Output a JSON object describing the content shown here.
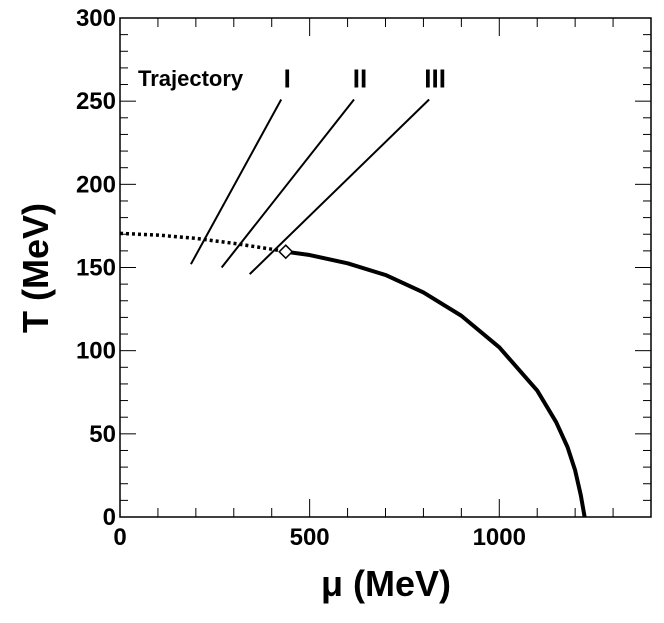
{
  "chart_data": {
    "type": "line",
    "xlabel": "μ (MeV)",
    "ylabel": "T (MeV)",
    "xlim": [
      0,
      1400
    ],
    "ylim": [
      0,
      300
    ],
    "x_tick_labels": [
      "0",
      "500",
      "1000"
    ],
    "y_tick_labels": [
      "0",
      "50",
      "100",
      "150",
      "200",
      "250",
      "300"
    ],
    "annotation_title": "Trajectory",
    "series": [
      {
        "style": "dotted",
        "x": [
          0,
          100,
          200,
          300,
          400,
          437
        ],
        "y": [
          170.5,
          169.5,
          167.5,
          164.5,
          161.0,
          159.5
        ]
      },
      {
        "style": "solid",
        "x": [
          437,
          500,
          600,
          700,
          800,
          900,
          1000,
          1100,
          1150,
          1180,
          1200,
          1215,
          1225
        ],
        "y": [
          159.5,
          157.5,
          152.5,
          145.5,
          135.0,
          121.0,
          102.0,
          76.0,
          57.0,
          42.0,
          28.0,
          13.0,
          0
        ]
      }
    ],
    "critical_point": {
      "x": 437,
      "y": 159.5
    },
    "trajectories": [
      {
        "label": "I",
        "x": [
          187,
          425
        ],
        "y": [
          152,
          251
        ]
      },
      {
        "label": "II",
        "x": [
          268,
          617
        ],
        "y": [
          150,
          251
        ]
      },
      {
        "label": "III",
        "x": [
          342,
          815
        ],
        "y": [
          146,
          251
        ]
      }
    ]
  }
}
